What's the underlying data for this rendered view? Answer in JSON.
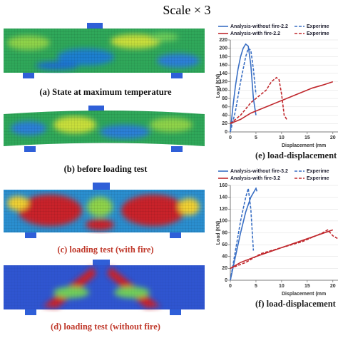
{
  "figure": {
    "title": "Scale × 3",
    "panels": [
      {
        "caption": "(a) State at maximum temperature",
        "color": "#111111"
      },
      {
        "caption": "(b) before loading test",
        "color": "#111111"
      },
      {
        "caption": "(c) loading test (with fire)",
        "color": "#c0392b"
      },
      {
        "caption": "(d) loading test (without fire)",
        "color": "#c0392b"
      }
    ]
  },
  "chart_data": [
    {
      "type": "line",
      "ylabel": "Load (KN)",
      "xlabel": "Displacement (mm",
      "caption": "(e) load-displacement relatio",
      "xlim": [
        0,
        21
      ],
      "ylim": [
        0,
        220
      ],
      "xticks": [
        0,
        5,
        10,
        15,
        20
      ],
      "yticks": [
        0,
        20,
        40,
        60,
        80,
        100,
        120,
        140,
        160,
        180,
        200,
        220
      ],
      "series": [
        {
          "name": "Analysis-without fire-2.2",
          "color": "#3a6fc4",
          "dashed": false,
          "x": [
            0,
            0.5,
            1,
            1.5,
            2,
            2.5,
            3,
            3.5,
            4,
            4.5,
            5
          ],
          "values": [
            0,
            60,
            110,
            150,
            180,
            200,
            210,
            205,
            160,
            80,
            40
          ]
        },
        {
          "name": "Experime",
          "color": "#3a6fc4",
          "dashed": true,
          "x": [
            0,
            1,
            2,
            3,
            3.5,
            4,
            4.5,
            5
          ],
          "values": [
            0,
            50,
            120,
            180,
            200,
            195,
            150,
            90
          ]
        },
        {
          "name": "Analysis-with fire-2.2",
          "color": "#c0282d",
          "dashed": false,
          "x": [
            0,
            2,
            4,
            6,
            8,
            10,
            12,
            14,
            16,
            18,
            20
          ],
          "values": [
            20,
            30,
            45,
            55,
            65,
            75,
            85,
            95,
            105,
            112,
            120
          ]
        },
        {
          "name": "Experime",
          "color": "#c0282d",
          "dashed": true,
          "x": [
            0,
            2,
            4,
            6,
            7,
            8,
            9,
            9.5,
            10,
            10.5,
            11
          ],
          "values": [
            20,
            40,
            70,
            90,
            100,
            120,
            130,
            125,
            90,
            40,
            30
          ]
        }
      ]
    },
    {
      "type": "line",
      "ylabel": "Load (KN)",
      "xlabel": "Displacement (mm",
      "caption": "(f) load-displacement relatio",
      "xlim": [
        0,
        21
      ],
      "ylim": [
        0,
        160
      ],
      "xticks": [
        0,
        5,
        10,
        15,
        20
      ],
      "yticks": [
        0,
        20,
        40,
        60,
        80,
        100,
        120,
        140,
        160
      ],
      "series": [
        {
          "name": "Analysis-without fire-3.2",
          "color": "#3a6fc4",
          "dashed": false,
          "x": [
            0,
            1,
            2,
            3,
            4,
            5,
            5.2
          ],
          "values": [
            0,
            40,
            80,
            115,
            140,
            155,
            150
          ]
        },
        {
          "name": "Experime",
          "color": "#3a6fc4",
          "dashed": true,
          "x": [
            0,
            1,
            2,
            3,
            3.5,
            4,
            4.5
          ],
          "values": [
            0,
            50,
            100,
            140,
            155,
            120,
            50
          ]
        },
        {
          "name": "Analysis-with fire-3.2",
          "color": "#c0282d",
          "dashed": false,
          "x": [
            0,
            2,
            5,
            10,
            15,
            20
          ],
          "values": [
            20,
            30,
            40,
            55,
            70,
            85
          ]
        },
        {
          "name": "Experime",
          "color": "#c0282d",
          "dashed": true,
          "x": [
            0,
            3,
            6,
            10,
            14,
            18,
            19,
            20,
            21
          ],
          "values": [
            20,
            30,
            45,
            55,
            65,
            80,
            85,
            75,
            70
          ]
        }
      ]
    }
  ]
}
